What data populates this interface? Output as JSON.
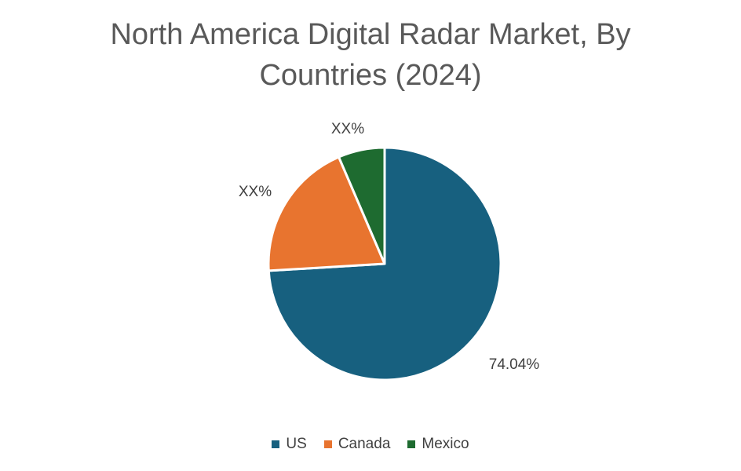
{
  "chart_data": {
    "type": "pie",
    "title_line1": "North America Digital Radar Market, By",
    "title_line2": "Countries (2024)",
    "slices": [
      {
        "name": "US",
        "value": 74.04,
        "label": "74.04%",
        "color": "#17607f"
      },
      {
        "name": "Canada",
        "value": 19.5,
        "label": "XX%",
        "color": "#e8742f"
      },
      {
        "name": "Mexico",
        "value": 6.46,
        "label": "XX%",
        "color": "#1e6b30"
      }
    ],
    "legend_position": "bottom",
    "start_angle": "top, clockwise"
  }
}
